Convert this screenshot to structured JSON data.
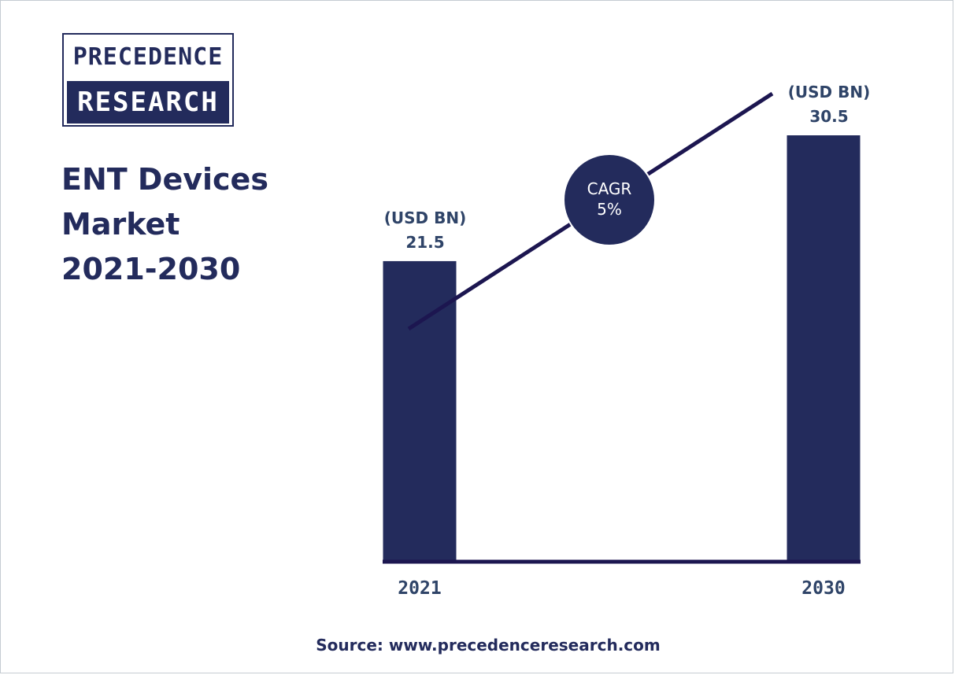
{
  "logo": {
    "line1": "PRECEDENCE",
    "line2": "RESEARCH"
  },
  "title": "ENT Devices\nMarket\n2021-2030",
  "source": "Source: www.precedenceresearch.com",
  "colors": {
    "bar": "#232b5c",
    "trend_line": "#1c1650",
    "label": "#2f4468",
    "cagr_circle": "#232b5c"
  },
  "chart_data": {
    "type": "bar",
    "categories": [
      "2021",
      "2030"
    ],
    "values": [
      21.5,
      30.5
    ],
    "unit_label": "(USD BN)",
    "value_labels": [
      "21.5",
      "30.5"
    ],
    "cagr": {
      "label": "CAGR",
      "value": "5%"
    },
    "title": "",
    "xlabel": "",
    "ylabel": ""
  }
}
